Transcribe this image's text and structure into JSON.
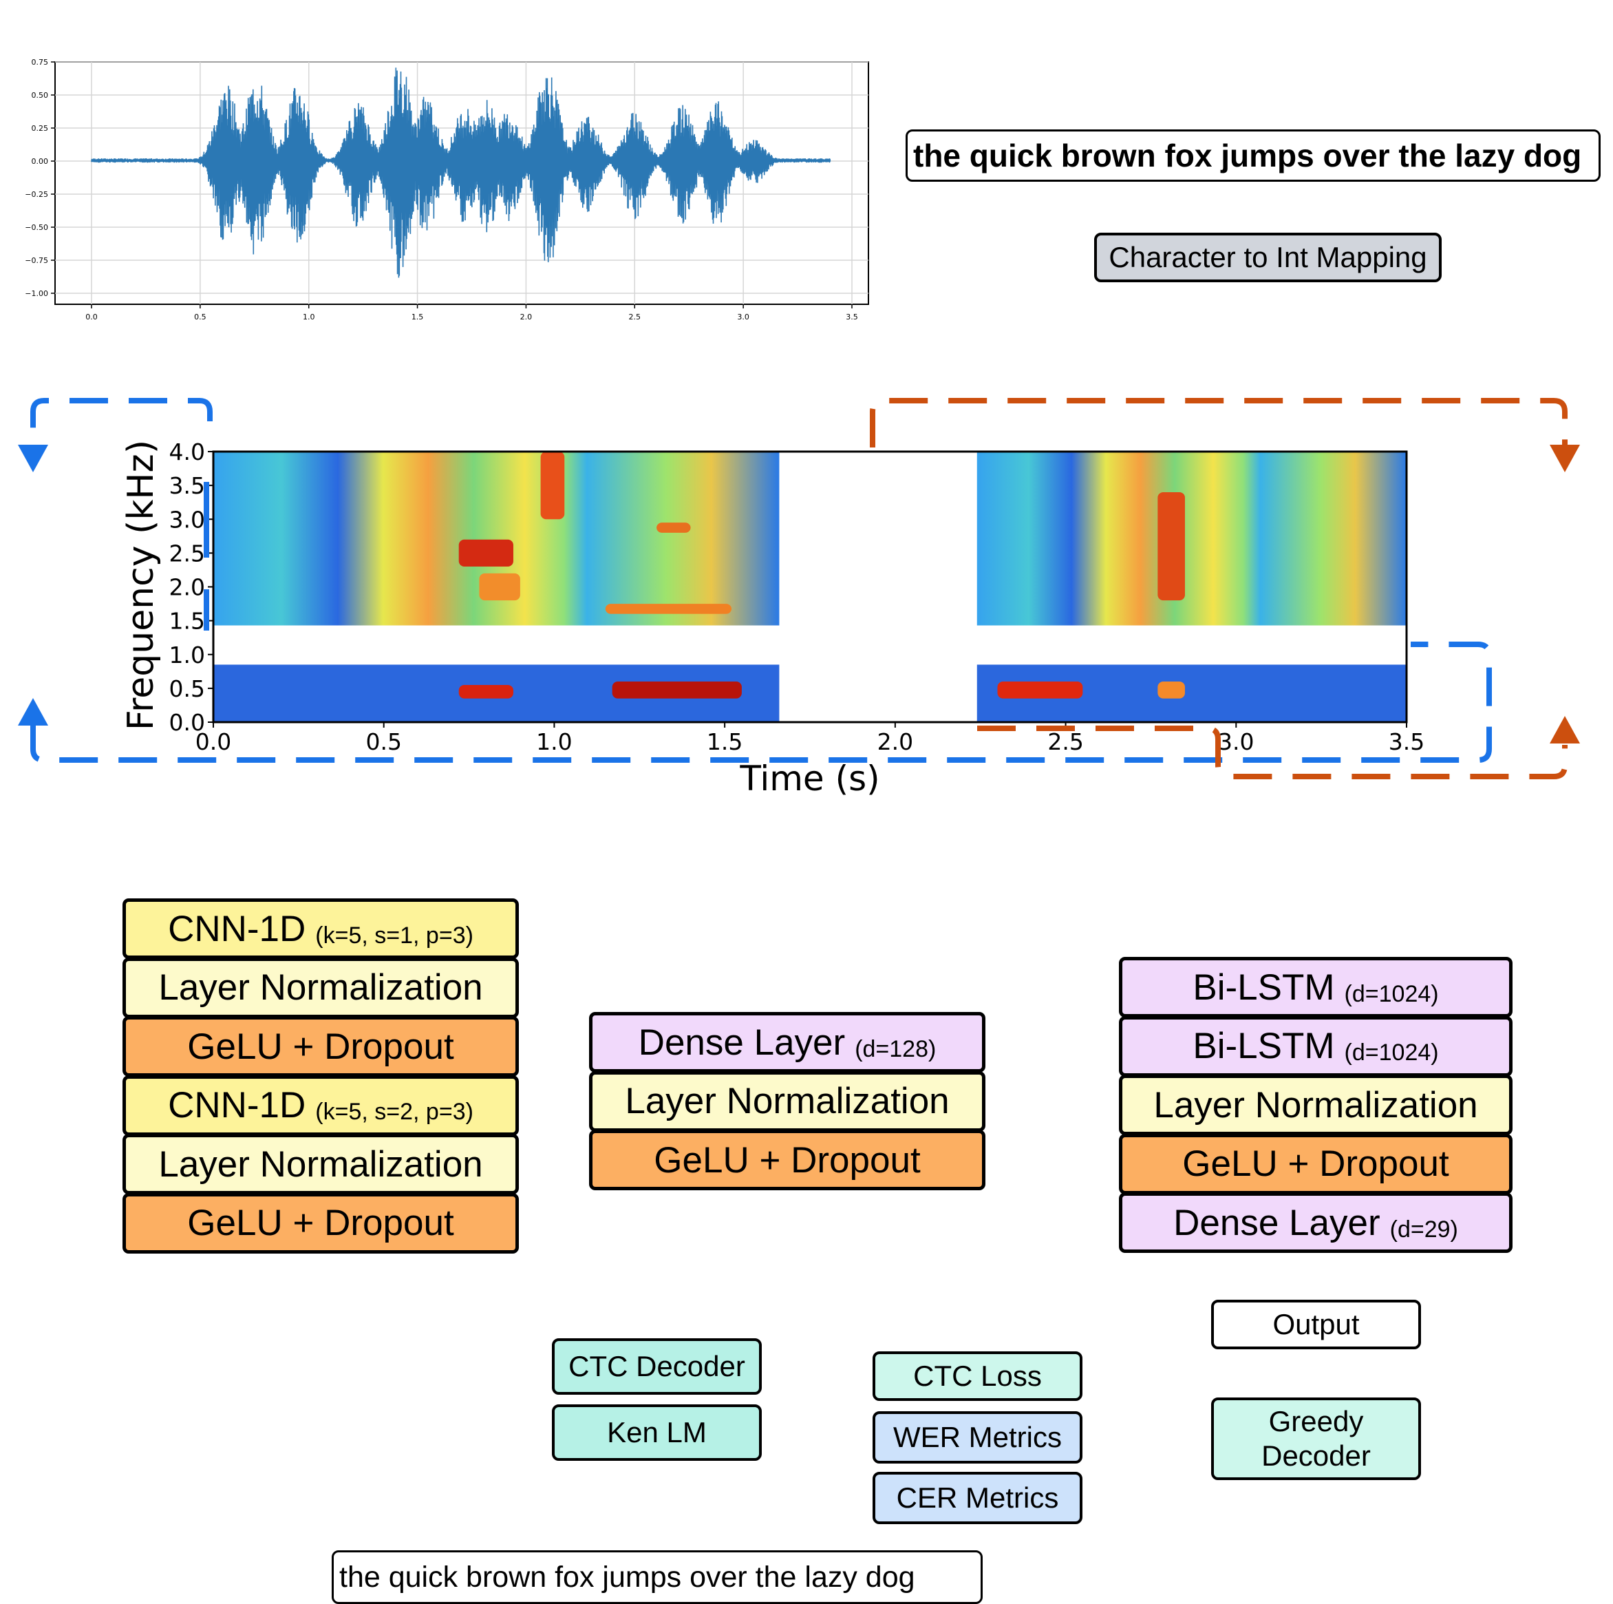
{
  "waveform": {
    "y_ticks": [
      "0.75",
      "0.50",
      "0.25",
      "0.00",
      "−0.25",
      "−0.50",
      "−0.75",
      "−1.00"
    ],
    "x_ticks": [
      "0.0",
      "0.5",
      "1.0",
      "1.5",
      "2.0",
      "2.5",
      "3.0",
      "3.5"
    ]
  },
  "transcript_top": "the quick brown fox jumps over the lazy dog",
  "char_mapping": "Character to Int Mapping",
  "spectrogram": {
    "ylabel": "Frequency (kHz)",
    "xlabel": "Time (s)",
    "y_ticks": [
      "4.0",
      "3.5",
      "3.0",
      "2.5",
      "2.0",
      "1.5",
      "1.0",
      "0.5",
      "0.0"
    ],
    "x_ticks": [
      "0.0",
      "0.5",
      "1.0",
      "1.5",
      "2.0",
      "2.5",
      "3.0",
      "3.5"
    ]
  },
  "colors": {
    "blue_dash": "#1a73e8",
    "orange_dash": "#cc4f0e",
    "wave": "#2b78b4"
  },
  "cnn_stack": [
    {
      "label": "CNN-1D",
      "sub": "(k=5, s=1, p=3)"
    },
    {
      "label": "Layer Normalization",
      "sub": ""
    },
    {
      "label": "GeLU + Dropout",
      "sub": ""
    },
    {
      "label": "CNN-1D",
      "sub": "(k=5, s=2, p=3)"
    },
    {
      "label": "Layer Normalization",
      "sub": ""
    },
    {
      "label": "GeLU + Dropout",
      "sub": ""
    }
  ],
  "dense_stack": [
    {
      "label": "Dense Layer",
      "sub": "(d=128)"
    },
    {
      "label": "Layer Normalization",
      "sub": ""
    },
    {
      "label": "GeLU + Dropout",
      "sub": ""
    }
  ],
  "lstm_stack": [
    {
      "label": "Bi-LSTM",
      "sub": "(d=1024)"
    },
    {
      "label": "Bi-LSTM",
      "sub": "(d=1024)"
    },
    {
      "label": "Layer Normalization",
      "sub": ""
    },
    {
      "label": "GeLU + Dropout",
      "sub": ""
    },
    {
      "label": "Dense Layer",
      "sub": "(d=29)"
    }
  ],
  "output": "Output",
  "greedy_decoder": "Greedy Decoder",
  "ctc_decoder": "CTC Decoder",
  "ken_lm": "Ken LM",
  "ctc_loss": "CTC Loss",
  "wer_metrics": "WER Metrics",
  "cer_metrics": "CER Metrics",
  "transcript_bottom": "the quick brown fox jumps over the lazy dog"
}
